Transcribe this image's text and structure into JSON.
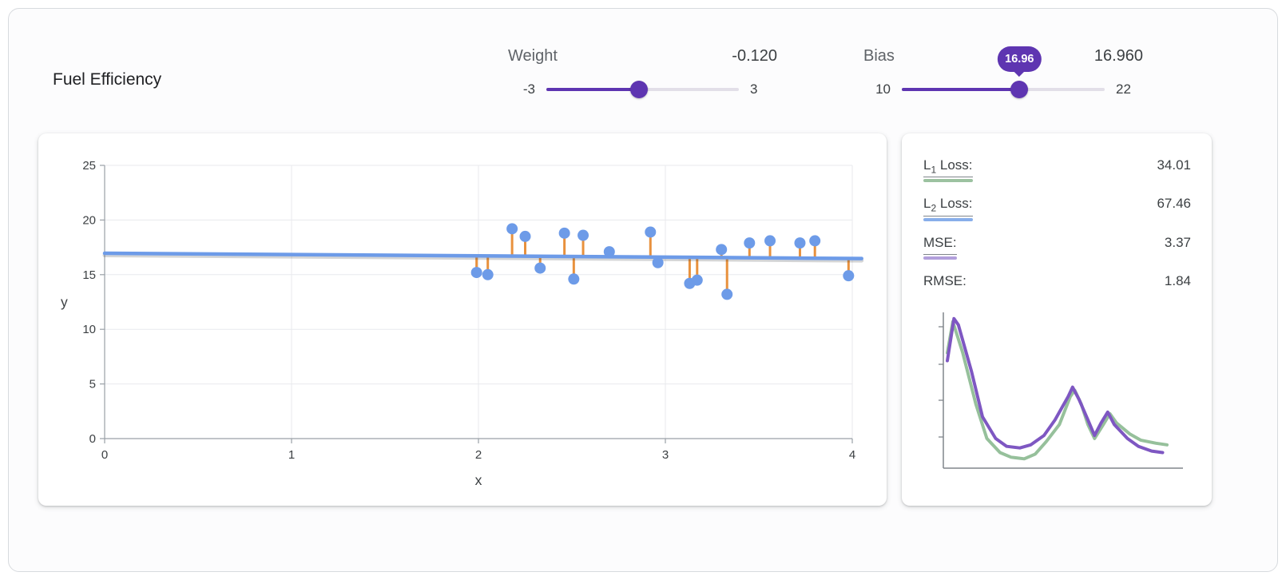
{
  "header": {
    "title": "Fuel Efficiency"
  },
  "theme": {
    "accent_color": "#5e35b1",
    "track_color": "#e2dfe8",
    "tooltip_text_color": "#ffffff"
  },
  "controls": {
    "weight": {
      "label": "Weight",
      "display": "-0.120",
      "value": -0.12,
      "min": -3,
      "max": 3,
      "min_label": "-3",
      "max_label": "3"
    },
    "bias": {
      "label": "Bias",
      "display": "16.960",
      "value": 16.96,
      "min": 10,
      "max": 22,
      "min_label": "10",
      "max_label": "22",
      "tooltip": "16.96"
    }
  },
  "loss": {
    "items": [
      {
        "prefix": "L",
        "sub": "1",
        "rest": " Loss:",
        "value": "34.01",
        "color": "#9cc2a0"
      },
      {
        "prefix": "L",
        "sub": "2",
        "rest": " Loss:",
        "value": "67.46",
        "color": "#88aeea"
      },
      {
        "prefix": "MSE:",
        "sub": "",
        "rest": "",
        "value": "3.37",
        "color": "#b29fdc"
      },
      {
        "prefix": "RMSE:",
        "sub": "",
        "rest": "",
        "value": "1.84",
        "color": ""
      }
    ]
  },
  "chart_data": [
    {
      "type": "scatter",
      "title": "",
      "xlabel": "x",
      "ylabel": "y",
      "xlim": [
        0,
        4
      ],
      "ylim": [
        0,
        25
      ],
      "xticks": [
        0,
        1,
        2,
        3,
        4
      ],
      "yticks": [
        0,
        5,
        10,
        15,
        20,
        25
      ],
      "grid": true,
      "points": [
        [
          1.99,
          15.2
        ],
        [
          2.05,
          15.0
        ],
        [
          2.18,
          19.2
        ],
        [
          2.25,
          18.5
        ],
        [
          2.33,
          15.6
        ],
        [
          2.46,
          18.8
        ],
        [
          2.51,
          14.6
        ],
        [
          2.56,
          18.6
        ],
        [
          2.7,
          17.1
        ],
        [
          2.92,
          18.9
        ],
        [
          2.96,
          16.1
        ],
        [
          3.13,
          14.2
        ],
        [
          3.17,
          14.5
        ],
        [
          3.3,
          17.3
        ],
        [
          3.33,
          13.2
        ],
        [
          3.45,
          17.9
        ],
        [
          3.56,
          18.1
        ],
        [
          3.72,
          17.9
        ],
        [
          3.8,
          18.1
        ],
        [
          3.98,
          14.9
        ]
      ],
      "line": {
        "weight": -0.12,
        "bias": 16.96,
        "x1": 0,
        "x2": 4.05
      },
      "colors": {
        "point": "#6d9be8",
        "line": "#6d9be8",
        "residual": "#e8913d"
      }
    },
    {
      "type": "line",
      "title": "loss-curves",
      "axes_labeled": false,
      "x_range_normalized": [
        0,
        1
      ],
      "series": [
        {
          "name": "L1 loss",
          "color": "#96c09b",
          "points": [
            [
              0.0,
              0.74
            ],
            [
              0.025,
              0.94
            ],
            [
              0.07,
              0.74
            ],
            [
              0.13,
              0.41
            ],
            [
              0.18,
              0.19
            ],
            [
              0.24,
              0.1
            ],
            [
              0.29,
              0.07
            ],
            [
              0.35,
              0.06
            ],
            [
              0.4,
              0.09
            ],
            [
              0.45,
              0.17
            ],
            [
              0.51,
              0.28
            ],
            [
              0.56,
              0.46
            ],
            [
              0.58,
              0.5
            ],
            [
              0.61,
              0.41
            ],
            [
              0.64,
              0.28
            ],
            [
              0.67,
              0.19
            ],
            [
              0.71,
              0.28
            ],
            [
              0.74,
              0.35
            ],
            [
              0.77,
              0.29
            ],
            [
              0.83,
              0.22
            ],
            [
              0.88,
              0.18
            ],
            [
              0.95,
              0.16
            ],
            [
              1.0,
              0.15
            ]
          ]
        },
        {
          "name": "MSE loss",
          "color": "#7e57c2",
          "points": [
            [
              0.0,
              0.69
            ],
            [
              0.03,
              0.96
            ],
            [
              0.05,
              0.92
            ],
            [
              0.11,
              0.62
            ],
            [
              0.16,
              0.33
            ],
            [
              0.22,
              0.19
            ],
            [
              0.27,
              0.14
            ],
            [
              0.33,
              0.13
            ],
            [
              0.38,
              0.15
            ],
            [
              0.44,
              0.21
            ],
            [
              0.49,
              0.31
            ],
            [
              0.55,
              0.46
            ],
            [
              0.57,
              0.52
            ],
            [
              0.6,
              0.44
            ],
            [
              0.64,
              0.31
            ],
            [
              0.67,
              0.21
            ],
            [
              0.7,
              0.29
            ],
            [
              0.73,
              0.36
            ],
            [
              0.76,
              0.28
            ],
            [
              0.82,
              0.19
            ],
            [
              0.87,
              0.14
            ],
            [
              0.93,
              0.11
            ],
            [
              0.98,
              0.1
            ]
          ]
        }
      ]
    }
  ]
}
